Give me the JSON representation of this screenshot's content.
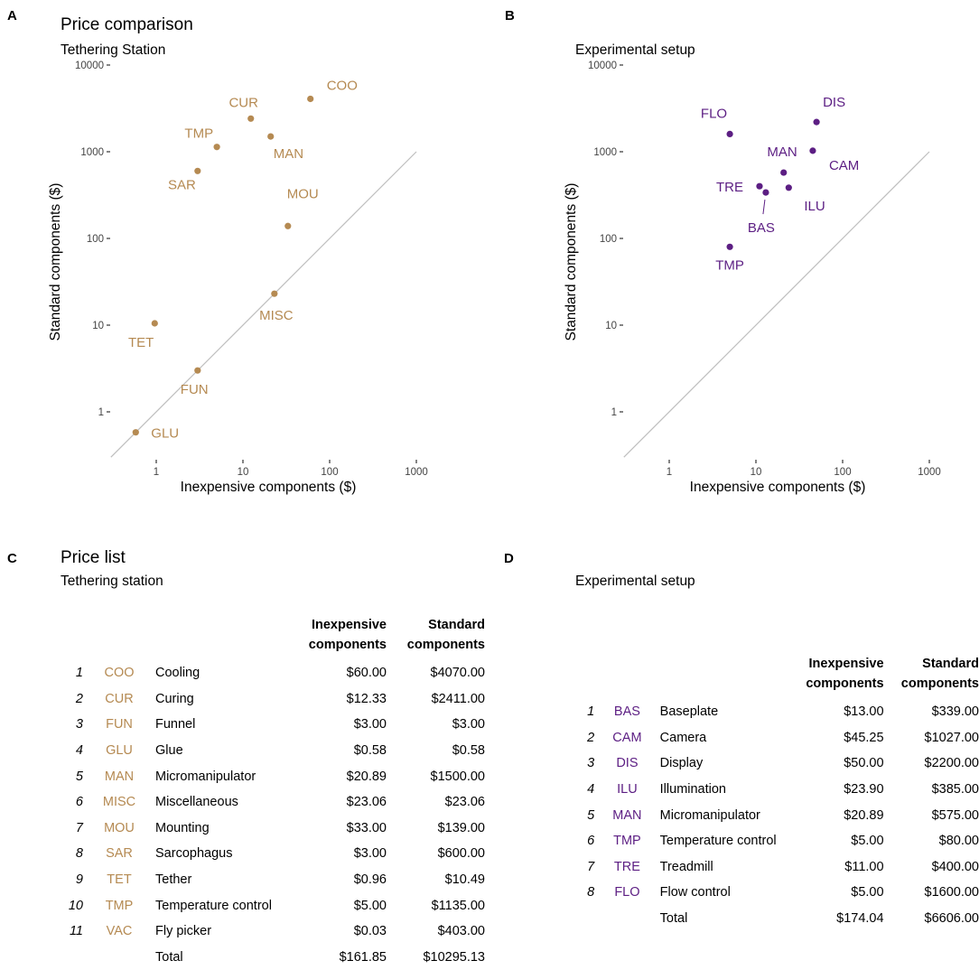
{
  "panels": {
    "A": {
      "letter": "A",
      "title": "Price comparison",
      "subtitle": "Tethering Station",
      "color": "#B58A52",
      "chart_data": {
        "type": "scatter",
        "xscale": "log10",
        "yscale": "log10",
        "xlabel": "Inexpensive components ($)",
        "ylabel": "Standard components ($)",
        "xticks": [
          1,
          10,
          100,
          1000
        ],
        "yticks": [
          1,
          10,
          100,
          1000,
          10000
        ],
        "identity_line": [
          0.3,
          1000
        ],
        "points": [
          {
            "label": "COO",
            "x": 60.0,
            "y": 4070.0
          },
          {
            "label": "CUR",
            "x": 12.33,
            "y": 2411.0
          },
          {
            "label": "FUN",
            "x": 3.0,
            "y": 3.0
          },
          {
            "label": "GLU",
            "x": 0.58,
            "y": 0.58
          },
          {
            "label": "MAN",
            "x": 20.89,
            "y": 1500.0
          },
          {
            "label": "MISC",
            "x": 23.06,
            "y": 23.06
          },
          {
            "label": "MOU",
            "x": 33.0,
            "y": 139.0
          },
          {
            "label": "SAR",
            "x": 3.0,
            "y": 600.0
          },
          {
            "label": "TET",
            "x": 0.96,
            "y": 10.49
          },
          {
            "label": "TMP",
            "x": 5.0,
            "y": 1135.0
          }
        ]
      }
    },
    "B": {
      "letter": "B",
      "subtitle": "Experimental setup",
      "color": "#5C1E83",
      "chart_data": {
        "type": "scatter",
        "xscale": "log10",
        "yscale": "log10",
        "xlabel": "Inexpensive components ($)",
        "ylabel": "Standard components ($)",
        "xticks": [
          1,
          10,
          100,
          1000
        ],
        "yticks": [
          1,
          10,
          100,
          1000,
          10000
        ],
        "identity_line": [
          0.3,
          1000
        ],
        "points": [
          {
            "label": "BAS",
            "x": 13.0,
            "y": 339.0
          },
          {
            "label": "CAM",
            "x": 45.25,
            "y": 1027.0
          },
          {
            "label": "DIS",
            "x": 50.0,
            "y": 2200.0
          },
          {
            "label": "ILU",
            "x": 23.9,
            "y": 385.0
          },
          {
            "label": "MAN",
            "x": 20.89,
            "y": 575.0
          },
          {
            "label": "TMP",
            "x": 5.0,
            "y": 80.0
          },
          {
            "label": "TRE",
            "x": 11.0,
            "y": 400.0
          },
          {
            "label": "FLO",
            "x": 5.0,
            "y": 1600.0
          }
        ]
      }
    },
    "C": {
      "letter": "C",
      "title": "Price list",
      "subtitle": "Tethering station",
      "header_col1": [
        "Inexpensive",
        "components"
      ],
      "header_col2": [
        "Standard",
        "components"
      ],
      "rows": [
        {
          "idx": "1",
          "code": "COO",
          "name": "Cooling",
          "inexp": "$60.00",
          "std": "$4070.00"
        },
        {
          "idx": "2",
          "code": "CUR",
          "name": "Curing",
          "inexp": "$12.33",
          "std": "$2411.00"
        },
        {
          "idx": "3",
          "code": "FUN",
          "name": "Funnel",
          "inexp": "$3.00",
          "std": "$3.00"
        },
        {
          "idx": "4",
          "code": "GLU",
          "name": "Glue",
          "inexp": "$0.58",
          "std": "$0.58"
        },
        {
          "idx": "5",
          "code": "MAN",
          "name": "Micromanipulator",
          "inexp": "$20.89",
          "std": "$1500.00"
        },
        {
          "idx": "6",
          "code": "MISC",
          "name": "Miscellaneous",
          "inexp": "$23.06",
          "std": "$23.06"
        },
        {
          "idx": "7",
          "code": "MOU",
          "name": "Mounting",
          "inexp": "$33.00",
          "std": "$139.00"
        },
        {
          "idx": "8",
          "code": "SAR",
          "name": "Sarcophagus",
          "inexp": "$3.00",
          "std": "$600.00"
        },
        {
          "idx": "9",
          "code": "TET",
          "name": "Tether",
          "inexp": "$0.96",
          "std": "$10.49"
        },
        {
          "idx": "10",
          "code": "TMP",
          "name": "Temperature control",
          "inexp": "$5.00",
          "std": "$1135.00"
        },
        {
          "idx": "11",
          "code": "VAC",
          "name": "Fly picker",
          "inexp": "$0.03",
          "std": "$403.00"
        }
      ],
      "total": {
        "name": "Total",
        "inexp": "$161.85",
        "std": "$10295.13"
      }
    },
    "D": {
      "letter": "D",
      "subtitle": "Experimental setup",
      "header_col1": [
        "Inexpensive",
        "components"
      ],
      "header_col2": [
        "Standard",
        "components"
      ],
      "rows": [
        {
          "idx": "1",
          "code": "BAS",
          "name": "Baseplate",
          "inexp": "$13.00",
          "std": "$339.00"
        },
        {
          "idx": "2",
          "code": "CAM",
          "name": "Camera",
          "inexp": "$45.25",
          "std": "$1027.00"
        },
        {
          "idx": "3",
          "code": "DIS",
          "name": "Display",
          "inexp": "$50.00",
          "std": "$2200.00"
        },
        {
          "idx": "4",
          "code": "ILU",
          "name": "Illumination",
          "inexp": "$23.90",
          "std": "$385.00"
        },
        {
          "idx": "5",
          "code": "MAN",
          "name": "Micromanipulator",
          "inexp": "$20.89",
          "std": "$575.00"
        },
        {
          "idx": "6",
          "code": "TMP",
          "name": "Temperature control",
          "inexp": "$5.00",
          "std": "$80.00"
        },
        {
          "idx": "7",
          "code": "TRE",
          "name": "Treadmill",
          "inexp": "$11.00",
          "std": "$400.00"
        },
        {
          "idx": "8",
          "code": "FLO",
          "name": "Flow control",
          "inexp": "$5.00",
          "std": "$1600.00"
        }
      ],
      "total": {
        "name": "Total",
        "inexp": "$174.04",
        "std": "$6606.00"
      }
    }
  }
}
